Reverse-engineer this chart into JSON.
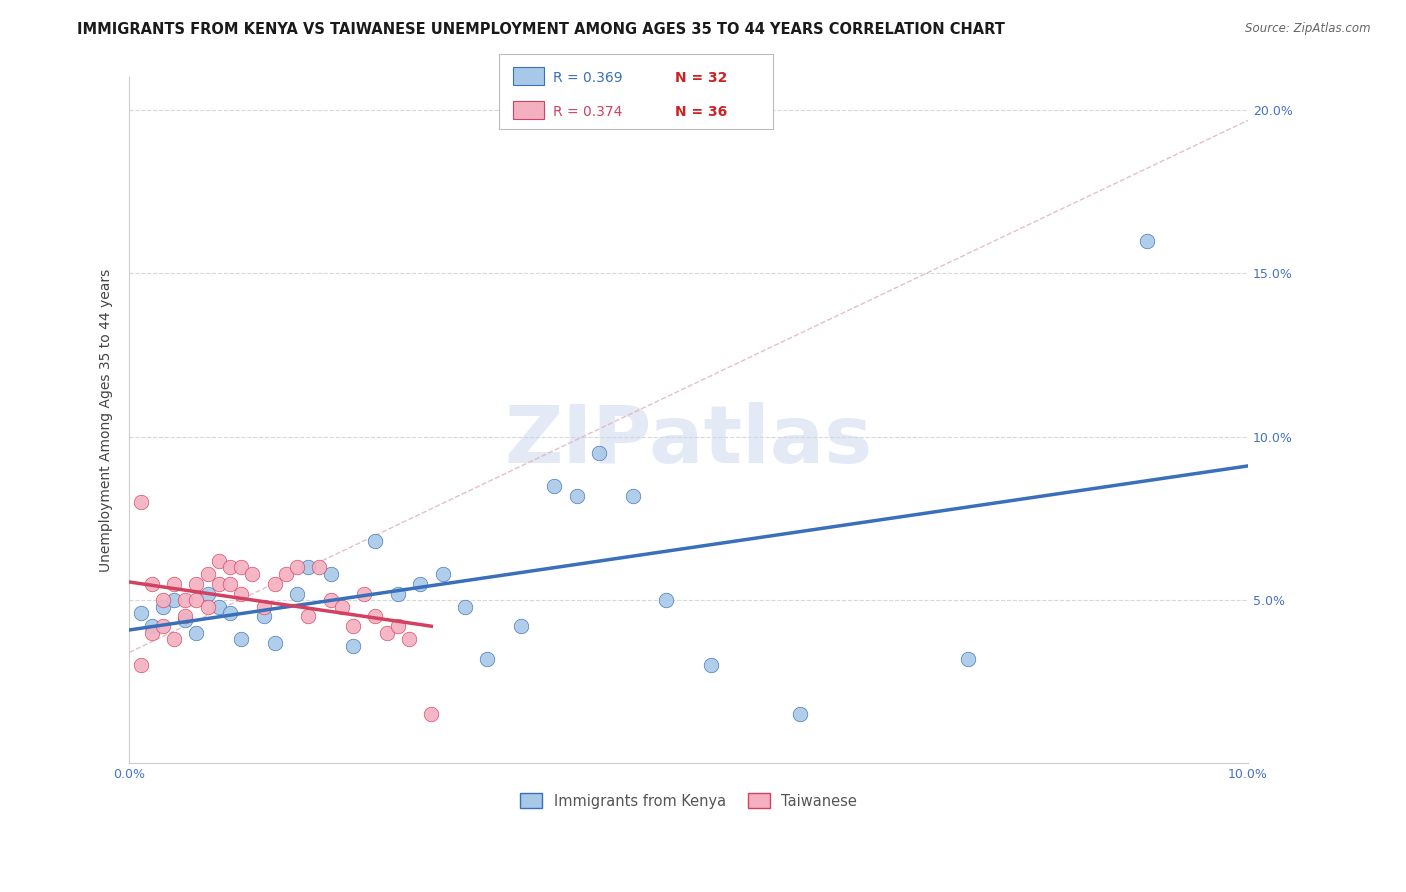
{
  "title": "IMMIGRANTS FROM KENYA VS TAIWANESE UNEMPLOYMENT AMONG AGES 35 TO 44 YEARS CORRELATION CHART",
  "source": "Source: ZipAtlas.com",
  "ylabel": "Unemployment Among Ages 35 to 44 years",
  "xlim": [
    0.0,
    0.1
  ],
  "ylim": [
    0.0,
    0.21
  ],
  "legend_label1": "Immigrants from Kenya",
  "legend_label2": "Taiwanese",
  "legend_r1": "R = 0.369",
  "legend_n1": "N = 32",
  "legend_r2": "R = 0.374",
  "legend_n2": "N = 36",
  "color_kenya": "#a8c8e8",
  "color_taiwanese": "#f4b0c0",
  "color_kenya_line": "#3a6fba",
  "color_taiwanese_line": "#d44060",
  "watermark_text": "ZIPatlas",
  "kenya_x": [
    0.001,
    0.002,
    0.003,
    0.004,
    0.005,
    0.006,
    0.007,
    0.008,
    0.009,
    0.01,
    0.012,
    0.013,
    0.015,
    0.016,
    0.018,
    0.02,
    0.022,
    0.024,
    0.026,
    0.028,
    0.03,
    0.032,
    0.035,
    0.038,
    0.04,
    0.042,
    0.045,
    0.048,
    0.052,
    0.06,
    0.075,
    0.091
  ],
  "kenya_y": [
    0.046,
    0.042,
    0.048,
    0.05,
    0.044,
    0.04,
    0.052,
    0.048,
    0.046,
    0.038,
    0.045,
    0.037,
    0.052,
    0.06,
    0.058,
    0.036,
    0.068,
    0.052,
    0.055,
    0.058,
    0.048,
    0.032,
    0.042,
    0.085,
    0.082,
    0.095,
    0.082,
    0.05,
    0.03,
    0.015,
    0.032,
    0.16
  ],
  "taiwanese_x": [
    0.001,
    0.001,
    0.002,
    0.002,
    0.003,
    0.003,
    0.004,
    0.004,
    0.005,
    0.005,
    0.006,
    0.006,
    0.007,
    0.007,
    0.008,
    0.008,
    0.009,
    0.009,
    0.01,
    0.01,
    0.011,
    0.012,
    0.013,
    0.014,
    0.015,
    0.016,
    0.017,
    0.018,
    0.019,
    0.02,
    0.021,
    0.022,
    0.023,
    0.024,
    0.025,
    0.027
  ],
  "taiwanese_y": [
    0.08,
    0.03,
    0.055,
    0.04,
    0.05,
    0.042,
    0.055,
    0.038,
    0.05,
    0.045,
    0.055,
    0.05,
    0.058,
    0.048,
    0.062,
    0.055,
    0.06,
    0.055,
    0.06,
    0.052,
    0.058,
    0.048,
    0.055,
    0.058,
    0.06,
    0.045,
    0.06,
    0.05,
    0.048,
    0.042,
    0.052,
    0.045,
    0.04,
    0.042,
    0.038,
    0.015
  ],
  "background_color": "#ffffff"
}
